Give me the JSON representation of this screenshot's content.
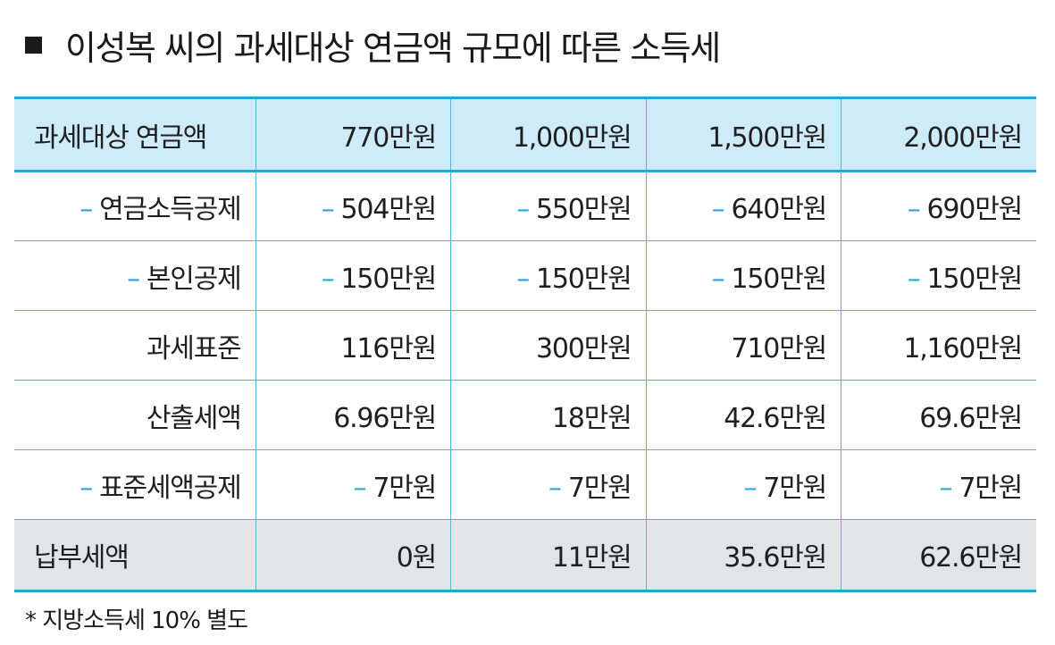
{
  "title": "이성복 씨의 과세대상 연금액 규모에 따른 소득세",
  "table": {
    "header": [
      "과세대상 연금액",
      "770만원",
      "1,000만원",
      "1,500만원",
      "2,000만원"
    ],
    "rows": [
      {
        "dash": "–",
        "label": "연금소득공제",
        "cells": [
          "504만원",
          "550만원",
          "640만원",
          "690만원"
        ]
      },
      {
        "dash": "–",
        "label": "본인공제",
        "cells": [
          "150만원",
          "150만원",
          "150만원",
          "150만원"
        ]
      },
      {
        "dash": "",
        "label": "과세표준",
        "cells": [
          "116만원",
          "300만원",
          "710만원",
          "1,160만원"
        ]
      },
      {
        "dash": "",
        "label": "산출세액",
        "cells": [
          "6.96만원",
          "18만원",
          "42.6만원",
          "69.6만원"
        ]
      },
      {
        "dash": "–",
        "label": "표준세액공제",
        "cells": [
          "7만원",
          "7만원",
          "7만원",
          "7만원"
        ]
      },
      {
        "dash": "",
        "label": "납부세액",
        "cells": [
          "0원",
          "11만원",
          "35.6만원",
          "62.6만원"
        ]
      }
    ],
    "cell_dash": "–"
  },
  "footnote": "* 지방소득세 10% 별도",
  "colors": {
    "accent": "#1fa9da",
    "header_bg": "#cdebf8",
    "total_bg": "#e3e4e6"
  }
}
